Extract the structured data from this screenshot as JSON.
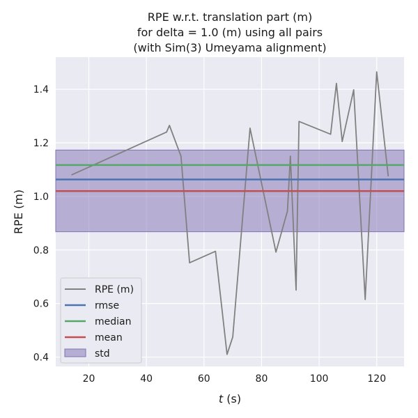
{
  "chart_data": {
    "type": "line",
    "title": [
      "RPE w.r.t. translation part (m)",
      "for delta = 1.0 (m) using all pairs",
      "(with Sim(3) Umeyama alignment)"
    ],
    "xlabel_var": "t",
    "xlabel_unit": " (s)",
    "ylabel": "RPE (m)",
    "xlim": [
      8.5,
      129.5
    ],
    "ylim": [
      0.365,
      1.52
    ],
    "xticks": [
      20,
      40,
      60,
      80,
      100,
      120
    ],
    "yticks": [
      0.4,
      0.6,
      0.8,
      1.0,
      1.2,
      1.4
    ],
    "xtick_labels": [
      "20",
      "40",
      "60",
      "80",
      "100",
      "120"
    ],
    "ytick_labels": [
      "0.4",
      "0.6",
      "0.8",
      "1.0",
      "1.2",
      "1.4"
    ],
    "grid": true,
    "legend_position": "lower-left",
    "series": [
      {
        "name": "RPE (m)",
        "color": "#808080",
        "x": [
          14,
          47,
          48,
          52,
          55,
          64,
          68,
          70,
          76,
          85,
          89,
          90,
          92,
          93,
          104,
          106,
          108,
          112,
          116,
          120,
          124
        ],
        "y": [
          1.08,
          1.24,
          1.265,
          1.15,
          0.752,
          0.795,
          0.41,
          0.475,
          1.255,
          0.792,
          0.945,
          1.15,
          0.65,
          1.28,
          1.232,
          1.422,
          1.205,
          1.398,
          0.615,
          1.465,
          1.075
        ]
      }
    ],
    "hlines": [
      {
        "name": "rmse",
        "value": 1.063,
        "color": "#4c72b0"
      },
      {
        "name": "median",
        "value": 1.117,
        "color": "#55a868"
      },
      {
        "name": "mean",
        "value": 1.02,
        "color": "#c44e52"
      }
    ],
    "band": {
      "name": "std",
      "low": 0.868,
      "high": 1.173,
      "color": "#8172b3"
    }
  }
}
